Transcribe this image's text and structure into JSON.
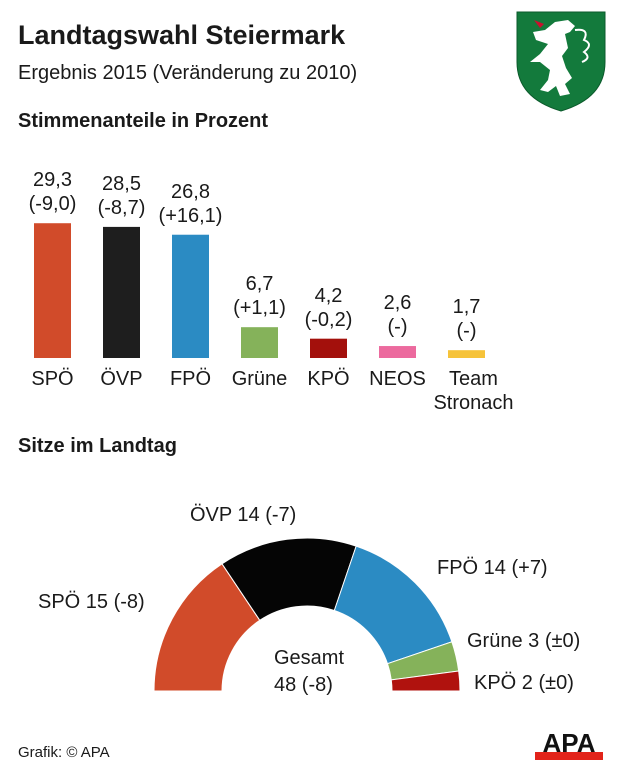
{
  "header": {
    "title": "Landtagswahl Steiermark",
    "subtitle": "Ergebnis 2015 (Veränderung zu 2010)",
    "logo": "coat-of-arms-styria"
  },
  "footer": {
    "credit": "Grafik: © APA",
    "brand_logo": "APA"
  },
  "chart_data": [
    {
      "type": "bar",
      "title": "Stimmenanteile in Prozent",
      "categories": [
        "SPÖ",
        "ÖVP",
        "FPÖ",
        "Grüne",
        "KPÖ",
        "NEOS",
        "Team Stronach"
      ],
      "values": [
        29.3,
        28.5,
        26.8,
        6.7,
        4.2,
        2.6,
        1.7
      ],
      "value_labels": [
        "29,3",
        "28,5",
        "26,8",
        "6,7",
        "4,2",
        "2,6",
        "1,7"
      ],
      "change_labels": [
        "(-9,0)",
        "(-8,7)",
        "(+16,1)",
        "(+1,1)",
        "(-0,2)",
        "(-)",
        "(-)"
      ],
      "colors": [
        "#d14b2a",
        "#1e1e1e",
        "#2b8bc3",
        "#85b25a",
        "#a3100c",
        "#ec6a9e",
        "#f6c33a"
      ],
      "grid": false
    },
    {
      "type": "pie",
      "subtype": "half-donut",
      "title": "Sitze im Landtag",
      "categories": [
        "SPÖ",
        "ÖVP",
        "FPÖ",
        "Grüne",
        "KPÖ"
      ],
      "values": [
        15,
        14,
        14,
        3,
        2
      ],
      "labels": [
        "SPÖ 15 (-8)",
        "ÖVP 14 (-7)",
        "FPÖ 14 (+7)",
        "Grüne 3 (±0)",
        "KPÖ 2 (±0)"
      ],
      "colors": [
        "#d14b2a",
        "#050505",
        "#2b8bc3",
        "#85b25a",
        "#b0120e"
      ],
      "total_label": [
        "Gesamt",
        "48 (-8)"
      ]
    }
  ]
}
